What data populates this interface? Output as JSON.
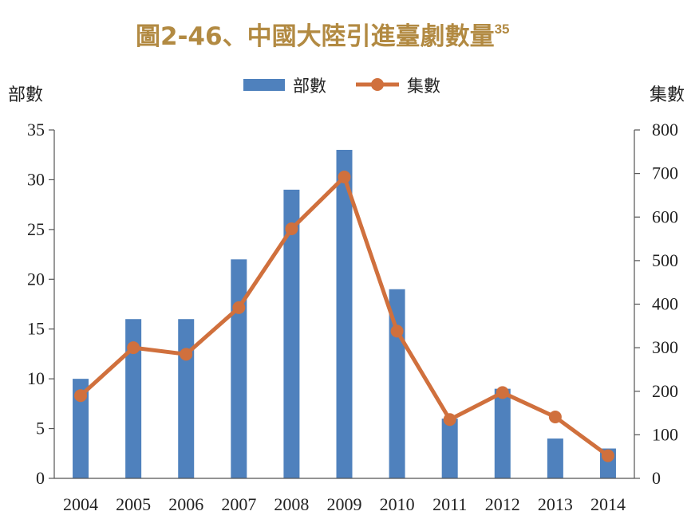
{
  "chart_data": {
    "type": "bar+line",
    "title": "圖2-46、中國大陸引進臺劇數量",
    "title_footnote": "35",
    "categories": [
      "2004",
      "2005",
      "2006",
      "2007",
      "2008",
      "2009",
      "2010",
      "2011",
      "2012",
      "2013",
      "2014"
    ],
    "series": [
      {
        "name": "部數",
        "type": "bar",
        "axis": "left",
        "color": "#4f81bd",
        "values": [
          10,
          16,
          16,
          22,
          29,
          33,
          19,
          6,
          9,
          4,
          3
        ]
      },
      {
        "name": "集數",
        "type": "line",
        "axis": "right",
        "color": "#d0703d",
        "values": [
          190,
          300,
          285,
          392,
          573,
          692,
          338,
          135,
          197,
          141,
          52
        ]
      }
    ],
    "left_axis": {
      "label": "部數",
      "ylim": [
        0,
        35
      ],
      "ticks": [
        0,
        5,
        10,
        15,
        20,
        25,
        30,
        35
      ]
    },
    "right_axis": {
      "label": "集數",
      "ylim": [
        0,
        800
      ],
      "ticks": [
        0,
        100,
        200,
        300,
        400,
        500,
        600,
        700,
        800
      ]
    },
    "legend": {
      "placement": "top-center",
      "entries": [
        "部數",
        "集數"
      ]
    },
    "grid": false
  }
}
